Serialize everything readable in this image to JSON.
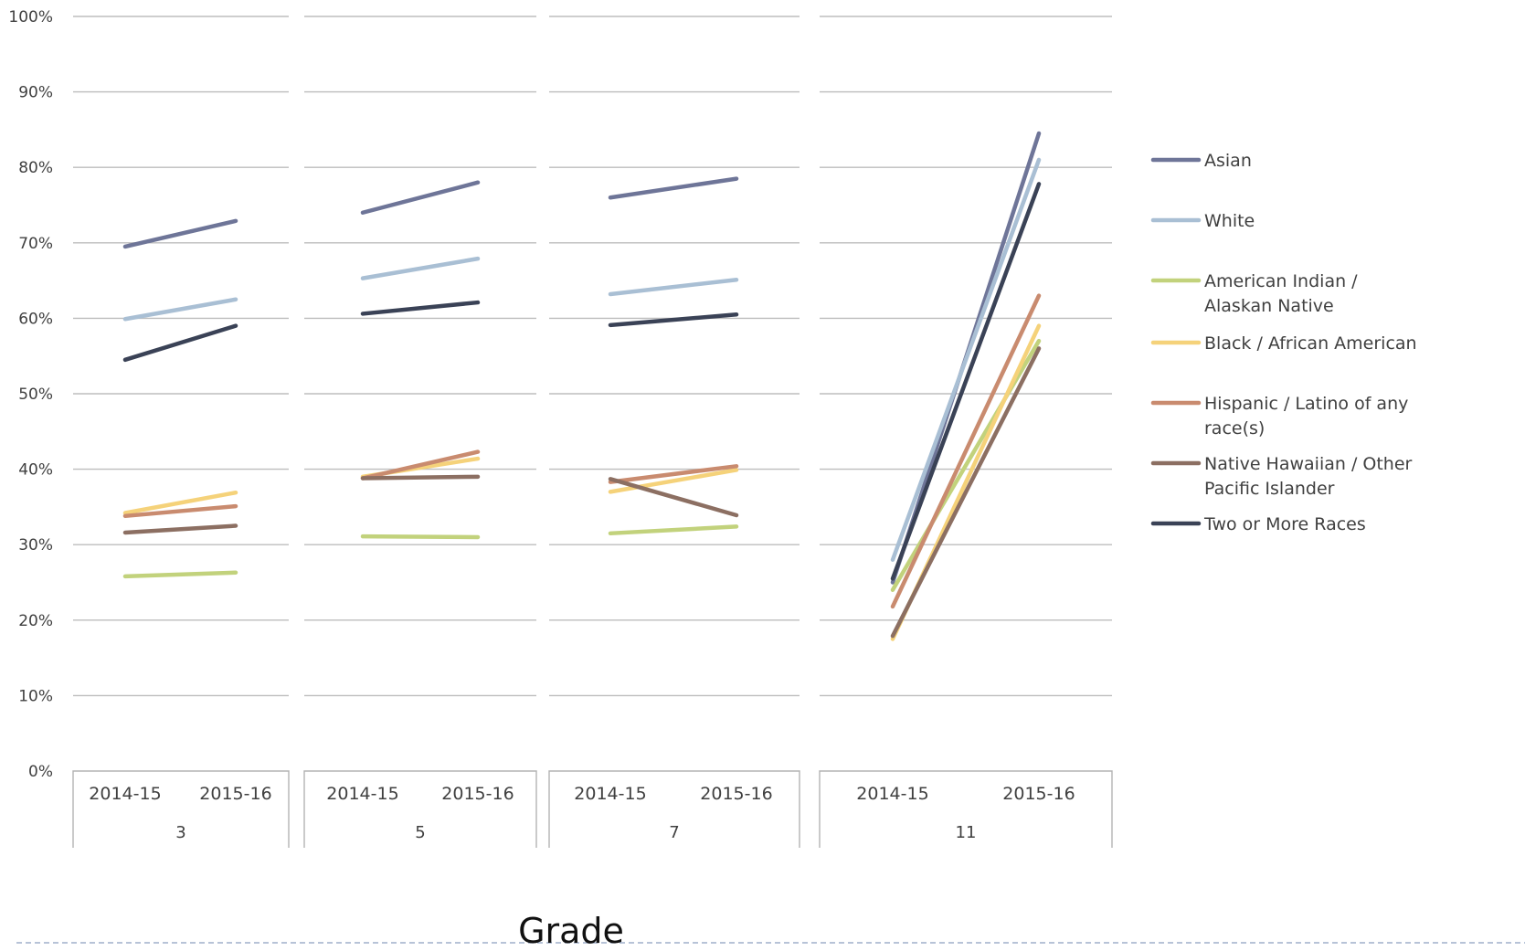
{
  "chart_data": {
    "type": "line",
    "xlabel": "Grade",
    "ylabel": "",
    "ylim": [
      0,
      100
    ],
    "y_ticks": [
      "0%",
      "10%",
      "20%",
      "30%",
      "40%",
      "50%",
      "60%",
      "70%",
      "80%",
      "90%",
      "100%"
    ],
    "x_categories": [
      "2014-15",
      "2015-16"
    ],
    "grades": [
      "3",
      "5",
      "7",
      "11"
    ],
    "grid": true,
    "legend_position": "right",
    "series": [
      {
        "name": "Asian",
        "color": "#6e7598",
        "values": {
          "3": [
            69.5,
            72.9
          ],
          "5": [
            74.0,
            78.0
          ],
          "7": [
            76.0,
            78.5
          ],
          "11": [
            25.0,
            84.5
          ]
        }
      },
      {
        "name": "White",
        "color": "#a9bfd4",
        "values": {
          "3": [
            59.9,
            62.5
          ],
          "5": [
            65.3,
            67.9
          ],
          "7": [
            63.2,
            65.1
          ],
          "11": [
            28.0,
            81.0
          ]
        }
      },
      {
        "name": "American Indian / Alaskan Native",
        "color": "#c2d27c",
        "values": {
          "3": [
            25.8,
            26.3
          ],
          "5": [
            31.1,
            31.0
          ],
          "7": [
            31.5,
            32.4
          ],
          "11": [
            24.0,
            57.0
          ]
        }
      },
      {
        "name": "Black / African American",
        "color": "#f5d27a",
        "values": {
          "3": [
            34.2,
            36.9
          ],
          "5": [
            39.0,
            41.4
          ],
          "7": [
            37.0,
            39.9
          ],
          "11": [
            17.5,
            59.0
          ]
        }
      },
      {
        "name": "Hispanic / Latino of any race(s)",
        "color": "#c98b6f",
        "values": {
          "3": [
            33.8,
            35.1
          ],
          "5": [
            38.8,
            42.3
          ],
          "7": [
            38.3,
            40.4
          ],
          "11": [
            21.8,
            63.0
          ]
        }
      },
      {
        "name": "Native Hawaiian / Other Pacific Islander",
        "color": "#8c6f62",
        "values": {
          "3": [
            31.6,
            32.5
          ],
          "5": [
            38.8,
            39.0
          ],
          "7": [
            38.7,
            33.9
          ],
          "11": [
            17.9,
            56.0
          ]
        }
      },
      {
        "name": "Two or More Races",
        "color": "#3a4256",
        "values": {
          "3": [
            54.5,
            59.0
          ],
          "5": [
            60.6,
            62.1
          ],
          "7": [
            59.1,
            60.5
          ],
          "11": [
            25.5,
            77.8
          ]
        }
      }
    ]
  }
}
